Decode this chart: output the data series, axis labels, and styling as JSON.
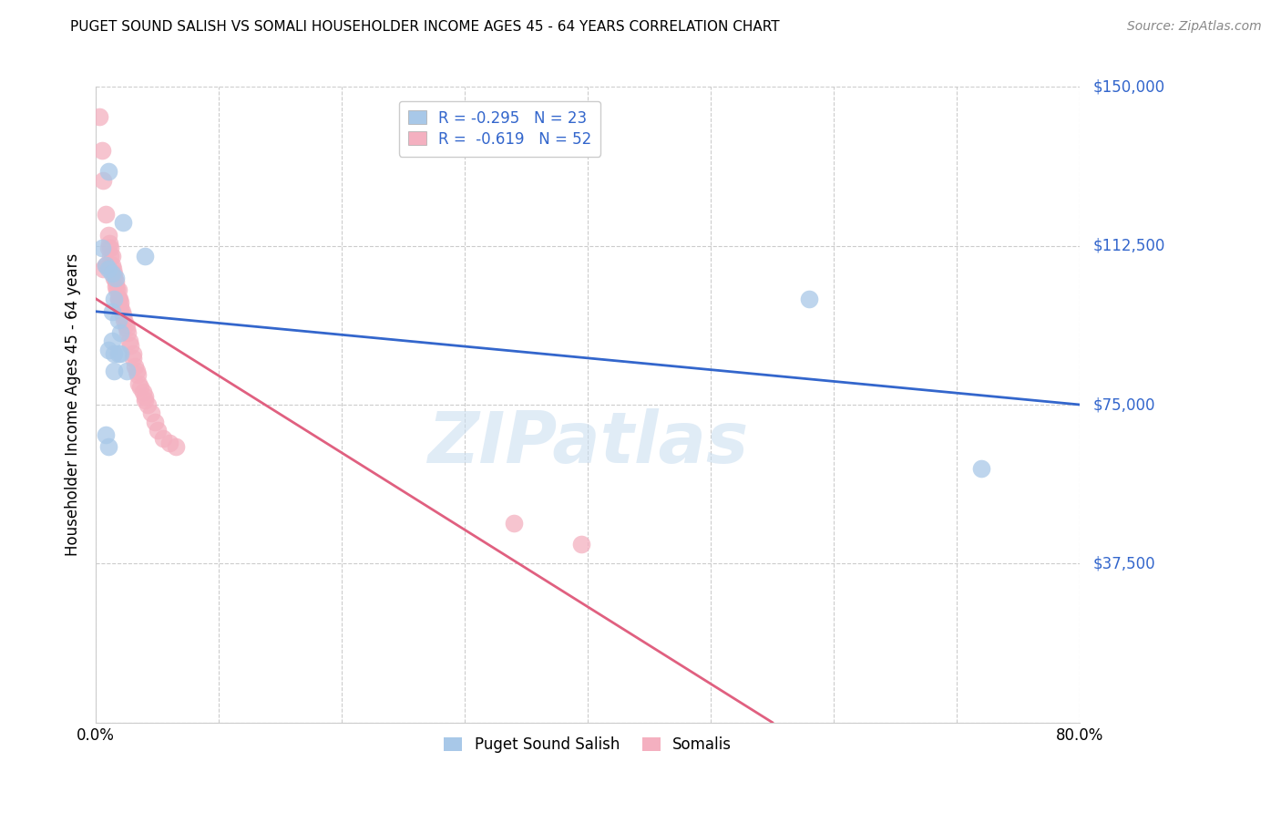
{
  "title": "PUGET SOUND SALISH VS SOMALI HOUSEHOLDER INCOME AGES 45 - 64 YEARS CORRELATION CHART",
  "source": "Source: ZipAtlas.com",
  "ylabel": "Householder Income Ages 45 - 64 years",
  "xlim": [
    0.0,
    0.8
  ],
  "ylim": [
    0,
    150000
  ],
  "yticks": [
    0,
    37500,
    75000,
    112500,
    150000
  ],
  "ytick_labels": [
    "",
    "$37,500",
    "$75,000",
    "$112,500",
    "$150,000"
  ],
  "xticks": [
    0.0,
    0.1,
    0.2,
    0.3,
    0.4,
    0.5,
    0.6,
    0.7,
    0.8
  ],
  "xtick_labels": [
    "0.0%",
    "",
    "",
    "",
    "",
    "",
    "",
    "",
    "80.0%"
  ],
  "blue_color": "#a8c8e8",
  "pink_color": "#f4b0c0",
  "blue_line_color": "#3366cc",
  "pink_line_color": "#e06080",
  "legend_label1": "Puget Sound Salish",
  "legend_label2": "Somalis",
  "watermark": "ZIPatlas",
  "blue_r": -0.295,
  "blue_n": 23,
  "pink_r": -0.619,
  "pink_n": 52,
  "blue_line_x0": 0.0,
  "blue_line_y0": 97000,
  "blue_line_x1": 0.8,
  "blue_line_y1": 75000,
  "pink_line_x0": 0.0,
  "pink_line_y0": 100000,
  "pink_line_x1": 0.55,
  "pink_line_y1": 0,
  "blue_points_x": [
    0.01,
    0.022,
    0.005,
    0.008,
    0.01,
    0.013,
    0.016,
    0.015,
    0.013,
    0.018,
    0.02,
    0.013,
    0.01,
    0.015,
    0.018,
    0.02,
    0.015,
    0.025,
    0.008,
    0.01,
    0.58,
    0.72,
    0.04
  ],
  "blue_points_y": [
    130000,
    118000,
    112000,
    108000,
    107000,
    106000,
    105000,
    100000,
    97000,
    95000,
    92000,
    90000,
    88000,
    87000,
    87000,
    87000,
    83000,
    83000,
    68000,
    65000,
    100000,
    60000,
    110000
  ],
  "pink_points_x": [
    0.003,
    0.005,
    0.006,
    0.008,
    0.01,
    0.011,
    0.012,
    0.013,
    0.013,
    0.014,
    0.015,
    0.015,
    0.016,
    0.016,
    0.017,
    0.018,
    0.018,
    0.018,
    0.019,
    0.02,
    0.02,
    0.021,
    0.022,
    0.023,
    0.024,
    0.025,
    0.026,
    0.027,
    0.028,
    0.03,
    0.03,
    0.032,
    0.033,
    0.034,
    0.035,
    0.036,
    0.038,
    0.04,
    0.04,
    0.042,
    0.045,
    0.048,
    0.05,
    0.055,
    0.06,
    0.065,
    0.01,
    0.012,
    0.008,
    0.006,
    0.34,
    0.395
  ],
  "pink_points_y": [
    143000,
    135000,
    128000,
    120000,
    115000,
    113000,
    112000,
    110000,
    108000,
    107000,
    106000,
    105000,
    104000,
    103000,
    102000,
    102000,
    100000,
    100000,
    100000,
    99000,
    98000,
    97000,
    96000,
    95000,
    94000,
    93000,
    92000,
    90000,
    89000,
    87000,
    86000,
    84000,
    83000,
    82000,
    80000,
    79000,
    78000,
    77000,
    76000,
    75000,
    73000,
    71000,
    69000,
    67000,
    66000,
    65000,
    112000,
    110000,
    108000,
    107000,
    47000,
    42000
  ]
}
